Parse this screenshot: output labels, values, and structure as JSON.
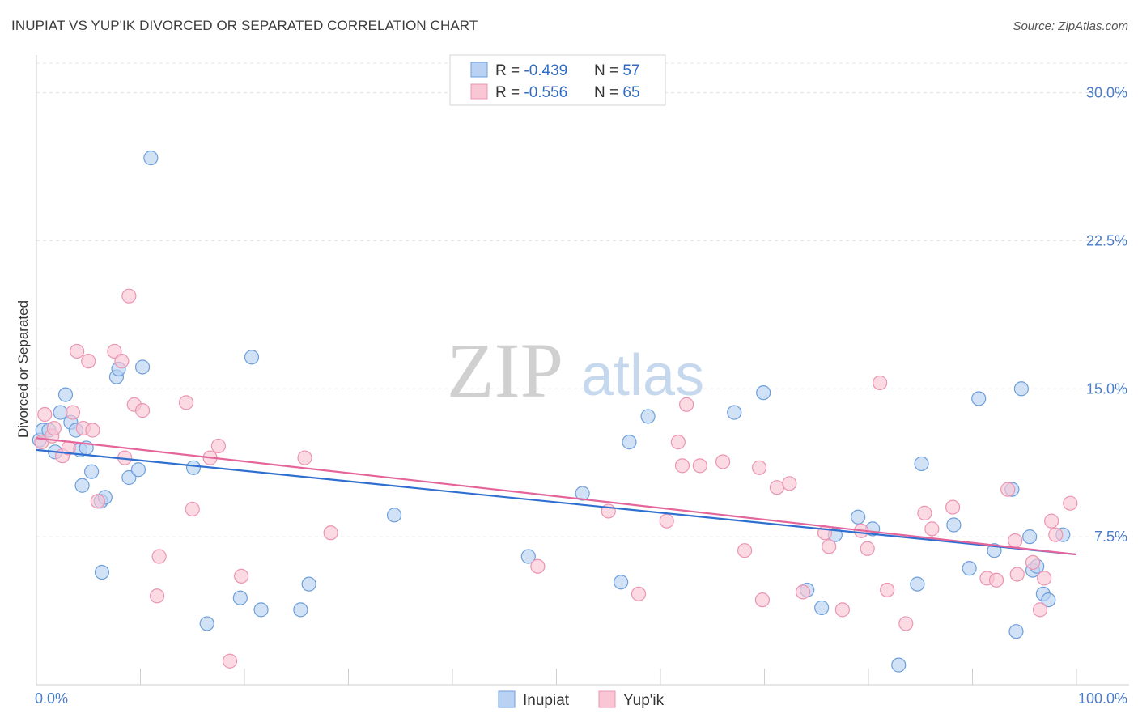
{
  "title": "INUPIAT VS YUP'IK DIVORCED OR SEPARATED CORRELATION CHART",
  "source": "Source: ZipAtlas.com",
  "watermark": {
    "zip": "ZIP",
    "atlas": "atlas"
  },
  "chart_data": {
    "type": "scatter",
    "ylabel": "Divorced or Separated",
    "xlim": [
      0,
      100
    ],
    "ylim": [
      0,
      31.5
    ],
    "y_ticks": [
      {
        "value": 7.5,
        "label": "7.5%"
      },
      {
        "value": 15.0,
        "label": "15.0%"
      },
      {
        "value": 22.5,
        "label": "22.5%"
      },
      {
        "value": 30.0,
        "label": "30.0%"
      }
    ],
    "x_tick_labels": {
      "left": "0.0%",
      "right": "100.0%"
    },
    "grid": "horizontal dashed",
    "legend": {
      "placement": "top-center",
      "entries": [
        {
          "r_label": "R = ",
          "r_value": "-0.439",
          "n_label": "N = ",
          "n_value": "57"
        },
        {
          "r_label": "R = ",
          "r_value": "-0.556",
          "n_label": "N = ",
          "n_value": "65"
        }
      ]
    },
    "bottom_legend": [
      "Inupiat",
      "Yup'ik"
    ],
    "series": [
      {
        "name": "Inupiat",
        "fill": "#b9d2f3",
        "stroke": "#6d9fdc",
        "line_color": "#2f6fd0",
        "trend": [
          [
            0,
            11.9
          ],
          [
            100,
            6.6
          ]
        ],
        "points": [
          [
            0.3,
            12.4
          ],
          [
            0.6,
            12.9
          ],
          [
            1.2,
            12.9
          ],
          [
            1.8,
            11.8
          ],
          [
            2.3,
            13.8
          ],
          [
            2.8,
            14.7
          ],
          [
            3.3,
            13.3
          ],
          [
            3.8,
            12.9
          ],
          [
            4.2,
            11.9
          ],
          [
            4.4,
            10.1
          ],
          [
            4.8,
            12.0
          ],
          [
            5.3,
            10.8
          ],
          [
            6.2,
            9.3
          ],
          [
            6.3,
            5.7
          ],
          [
            6.6,
            9.5
          ],
          [
            7.7,
            15.6
          ],
          [
            7.9,
            16.0
          ],
          [
            8.9,
            10.5
          ],
          [
            9.8,
            10.9
          ],
          [
            10.2,
            16.1
          ],
          [
            11.0,
            26.7
          ],
          [
            15.1,
            11.0
          ],
          [
            16.4,
            3.1
          ],
          [
            19.6,
            4.4
          ],
          [
            20.7,
            16.6
          ],
          [
            21.6,
            3.8
          ],
          [
            25.4,
            3.8
          ],
          [
            26.2,
            5.1
          ],
          [
            34.4,
            8.6
          ],
          [
            47.3,
            6.5
          ],
          [
            52.5,
            9.7
          ],
          [
            56.2,
            5.2
          ],
          [
            57.0,
            12.3
          ],
          [
            58.8,
            13.6
          ],
          [
            67.1,
            13.8
          ],
          [
            69.9,
            14.8
          ],
          [
            74.1,
            4.8
          ],
          [
            75.5,
            3.9
          ],
          [
            76.8,
            7.6
          ],
          [
            79.0,
            8.5
          ],
          [
            80.4,
            7.9
          ],
          [
            82.9,
            1.0
          ],
          [
            84.7,
            5.1
          ],
          [
            85.1,
            11.2
          ],
          [
            88.2,
            8.1
          ],
          [
            89.7,
            5.9
          ],
          [
            90.6,
            14.5
          ],
          [
            92.1,
            6.8
          ],
          [
            93.8,
            9.9
          ],
          [
            94.2,
            2.7
          ],
          [
            94.7,
            15.0
          ],
          [
            95.5,
            7.5
          ],
          [
            95.8,
            5.8
          ],
          [
            96.2,
            6.0
          ],
          [
            96.8,
            4.6
          ],
          [
            97.3,
            4.3
          ],
          [
            98.7,
            7.6
          ]
        ]
      },
      {
        "name": "Yup'ik",
        "fill": "#f9c6d6",
        "stroke": "#ec94b1",
        "line_color": "#e4659a",
        "trend": [
          [
            0,
            12.5
          ],
          [
            100,
            6.6
          ]
        ],
        "points": [
          [
            0.5,
            12.3
          ],
          [
            0.8,
            13.7
          ],
          [
            1.5,
            12.6
          ],
          [
            1.7,
            13.0
          ],
          [
            2.5,
            11.6
          ],
          [
            3.1,
            12.0
          ],
          [
            3.5,
            13.8
          ],
          [
            3.9,
            16.9
          ],
          [
            4.5,
            13.0
          ],
          [
            5.0,
            16.4
          ],
          [
            5.4,
            12.9
          ],
          [
            5.9,
            9.3
          ],
          [
            7.5,
            16.9
          ],
          [
            8.2,
            16.4
          ],
          [
            8.5,
            11.5
          ],
          [
            8.9,
            19.7
          ],
          [
            9.4,
            14.2
          ],
          [
            10.2,
            13.9
          ],
          [
            11.6,
            4.5
          ],
          [
            11.8,
            6.5
          ],
          [
            14.4,
            14.3
          ],
          [
            15.0,
            8.9
          ],
          [
            16.7,
            11.5
          ],
          [
            17.5,
            12.1
          ],
          [
            18.6,
            1.2
          ],
          [
            19.7,
            5.5
          ],
          [
            25.8,
            11.5
          ],
          [
            28.3,
            7.7
          ],
          [
            48.2,
            6.0
          ],
          [
            55.0,
            8.8
          ],
          [
            57.9,
            4.6
          ],
          [
            60.6,
            8.3
          ],
          [
            61.7,
            12.3
          ],
          [
            62.1,
            11.1
          ],
          [
            62.5,
            14.2
          ],
          [
            63.8,
            11.1
          ],
          [
            66.0,
            11.3
          ],
          [
            68.1,
            6.8
          ],
          [
            69.5,
            11.0
          ],
          [
            69.8,
            4.3
          ],
          [
            71.2,
            10.0
          ],
          [
            72.4,
            10.2
          ],
          [
            73.7,
            4.7
          ],
          [
            75.8,
            7.7
          ],
          [
            76.2,
            7.0
          ],
          [
            77.5,
            3.8
          ],
          [
            79.3,
            7.8
          ],
          [
            79.9,
            6.9
          ],
          [
            81.1,
            15.3
          ],
          [
            81.8,
            4.8
          ],
          [
            83.6,
            3.1
          ],
          [
            85.4,
            8.7
          ],
          [
            86.1,
            7.9
          ],
          [
            88.1,
            9.0
          ],
          [
            91.4,
            5.4
          ],
          [
            92.3,
            5.3
          ],
          [
            93.4,
            9.9
          ],
          [
            94.1,
            7.3
          ],
          [
            94.3,
            5.6
          ],
          [
            95.8,
            6.2
          ],
          [
            96.5,
            3.8
          ],
          [
            96.9,
            5.4
          ],
          [
            97.6,
            8.3
          ],
          [
            98.0,
            7.6
          ],
          [
            99.4,
            9.2
          ]
        ]
      }
    ]
  }
}
